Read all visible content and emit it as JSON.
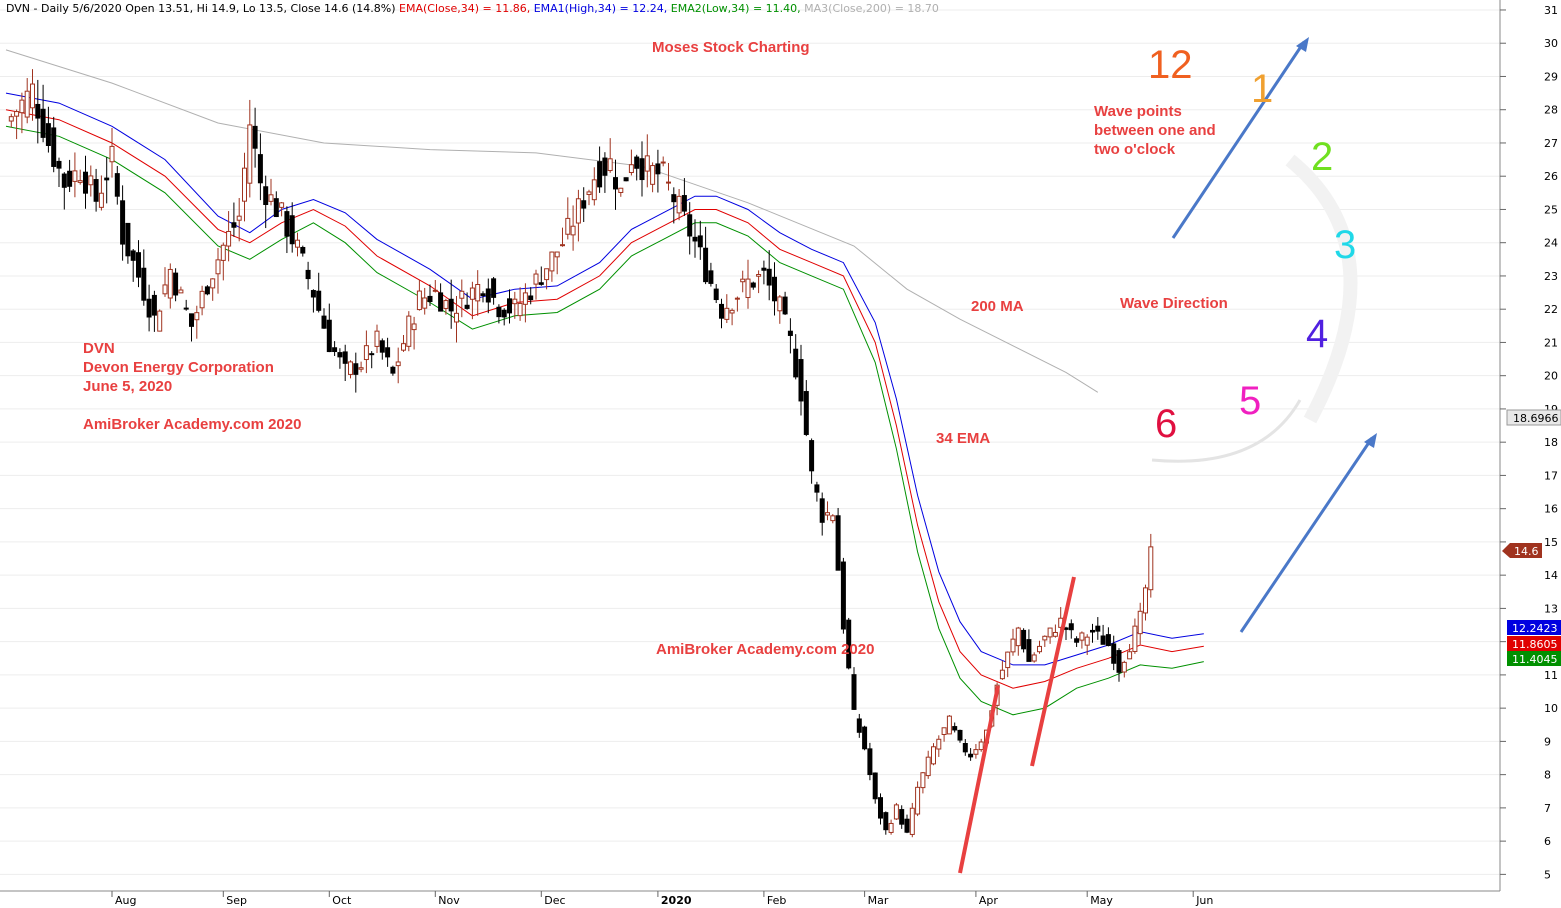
{
  "header": {
    "prefix": "DVN - Daily 5/6/2020 Open 13.51, Hi 14.9, Lo 13.5, Close 14.6 (14.8%) ",
    "ema": "EMA(Close,34) = 11.86, ",
    "ema1": "EMA1(High,34) = 12.24, ",
    "ema2": "EMA2(Low,34) = 11.40, ",
    "ma3": "MA3(Close,200) = 18.70"
  },
  "annotations": {
    "moses": "Moses Stock Charting",
    "ticker": "DVN",
    "company": "Devon Energy Corporation",
    "date": "June 5, 2020",
    "academy_left": "AmiBroker Academy.com  2020",
    "academy_mid": "AmiBroker Academy.com  2020",
    "ma200": "200 MA",
    "ema34": "34 EMA",
    "wave_line1": "Wave points",
    "wave_line2": "between one and",
    "wave_line3": "two o'clock",
    "wave_direction": "Wave Direction"
  },
  "clock": [
    "12",
    "1",
    "2",
    "3",
    "4",
    "5",
    "6"
  ],
  "price_tags": {
    "ma200": "18.6966",
    "close": "14.6",
    "ema_high": "12.2423",
    "ema_close": "11.8605",
    "ema_low": "11.4045"
  },
  "colors": {
    "background": "#ffffff",
    "up_candle": "#a0331f",
    "down_candle": "#000000",
    "ema_close": "#e00000",
    "ema_high": "#0000e0",
    "ema_low": "#009000",
    "ma200": "#b0b0b0",
    "annotation": "#e84040",
    "arrow": "#4a78c8",
    "trend": "#e84040"
  },
  "chart_data": {
    "type": "candlestick",
    "title": "DVN - Daily 5/6/2020",
    "ylim": [
      4.5,
      31.3
    ],
    "y_ticks": [
      5,
      6,
      7,
      8,
      9,
      10,
      11,
      12,
      13,
      14,
      15,
      16,
      17,
      18,
      19,
      20,
      21,
      22,
      23,
      24,
      25,
      26,
      27,
      28,
      29,
      30,
      31
    ],
    "x_ticks": [
      "Aug",
      "Sep",
      "Oct",
      "Nov",
      "Dec",
      "2020",
      "Feb",
      "Mar",
      "Apr",
      "May",
      "Jun"
    ],
    "x_tick_index": [
      20,
      41,
      61,
      81,
      101,
      123,
      143,
      162,
      183,
      204,
      224
    ],
    "series": [
      {
        "name": "EMA(Close,34)",
        "values": [
          [
            0,
            28.0
          ],
          [
            10,
            27.7
          ],
          [
            20,
            27.0
          ],
          [
            30,
            26.0
          ],
          [
            40,
            24.4
          ],
          [
            46,
            24.0
          ],
          [
            52,
            24.6
          ],
          [
            58,
            25.0
          ],
          [
            64,
            24.5
          ],
          [
            70,
            23.6
          ],
          [
            80,
            22.7
          ],
          [
            88,
            21.8
          ],
          [
            96,
            22.2
          ],
          [
            104,
            22.3
          ],
          [
            112,
            23.0
          ],
          [
            118,
            24.0
          ],
          [
            124,
            24.5
          ],
          [
            130,
            25.0
          ],
          [
            134,
            25.0
          ],
          [
            140,
            24.6
          ],
          [
            146,
            23.8
          ],
          [
            152,
            23.4
          ],
          [
            158,
            23.0
          ],
          [
            164,
            21.0
          ],
          [
            168,
            18.5
          ],
          [
            172,
            15.5
          ],
          [
            176,
            13.2
          ],
          [
            180,
            11.7
          ],
          [
            184,
            11.0
          ],
          [
            190,
            10.6
          ],
          [
            196,
            10.8
          ],
          [
            202,
            11.2
          ],
          [
            208,
            11.5
          ],
          [
            214,
            11.9
          ],
          [
            220,
            11.7
          ],
          [
            226,
            11.86
          ]
        ]
      },
      {
        "name": "EMA1(High,34)",
        "values": [
          [
            0,
            28.5
          ],
          [
            10,
            28.2
          ],
          [
            20,
            27.5
          ],
          [
            30,
            26.5
          ],
          [
            40,
            24.8
          ],
          [
            46,
            24.3
          ],
          [
            52,
            25.0
          ],
          [
            58,
            25.3
          ],
          [
            64,
            24.9
          ],
          [
            70,
            24.1
          ],
          [
            80,
            23.2
          ],
          [
            88,
            22.3
          ],
          [
            96,
            22.6
          ],
          [
            104,
            22.7
          ],
          [
            112,
            23.4
          ],
          [
            118,
            24.4
          ],
          [
            124,
            24.9
          ],
          [
            130,
            25.4
          ],
          [
            134,
            25.4
          ],
          [
            140,
            25.0
          ],
          [
            146,
            24.3
          ],
          [
            152,
            23.8
          ],
          [
            158,
            23.4
          ],
          [
            164,
            21.6
          ],
          [
            168,
            19.3
          ],
          [
            172,
            16.4
          ],
          [
            176,
            14.1
          ],
          [
            180,
            12.6
          ],
          [
            184,
            11.7
          ],
          [
            190,
            11.3
          ],
          [
            196,
            11.3
          ],
          [
            202,
            11.6
          ],
          [
            208,
            11.9
          ],
          [
            214,
            12.3
          ],
          [
            220,
            12.1
          ],
          [
            226,
            12.24
          ]
        ]
      },
      {
        "name": "EMA2(Low,34)",
        "values": [
          [
            0,
            27.5
          ],
          [
            10,
            27.2
          ],
          [
            20,
            26.5
          ],
          [
            30,
            25.5
          ],
          [
            40,
            23.9
          ],
          [
            46,
            23.5
          ],
          [
            52,
            24.1
          ],
          [
            58,
            24.6
          ],
          [
            64,
            24.0
          ],
          [
            70,
            23.1
          ],
          [
            80,
            22.2
          ],
          [
            88,
            21.4
          ],
          [
            96,
            21.8
          ],
          [
            104,
            21.9
          ],
          [
            112,
            22.6
          ],
          [
            118,
            23.6
          ],
          [
            124,
            24.1
          ],
          [
            130,
            24.6
          ],
          [
            134,
            24.6
          ],
          [
            140,
            24.2
          ],
          [
            146,
            23.4
          ],
          [
            152,
            23.0
          ],
          [
            158,
            22.6
          ],
          [
            164,
            20.4
          ],
          [
            168,
            17.8
          ],
          [
            172,
            14.7
          ],
          [
            176,
            12.4
          ],
          [
            180,
            10.9
          ],
          [
            184,
            10.2
          ],
          [
            190,
            9.8
          ],
          [
            196,
            10.0
          ],
          [
            202,
            10.6
          ],
          [
            208,
            10.9
          ],
          [
            214,
            11.3
          ],
          [
            220,
            11.2
          ],
          [
            226,
            11.4
          ]
        ]
      },
      {
        "name": "MA3(Close,200)",
        "values": [
          [
            0,
            29.8
          ],
          [
            20,
            28.8
          ],
          [
            40,
            27.6
          ],
          [
            60,
            27.0
          ],
          [
            80,
            26.8
          ],
          [
            100,
            26.7
          ],
          [
            120,
            26.3
          ],
          [
            140,
            25.2
          ],
          [
            160,
            23.9
          ],
          [
            170,
            22.6
          ],
          [
            180,
            21.7
          ],
          [
            190,
            20.9
          ],
          [
            200,
            20.1
          ],
          [
            206,
            19.5
          ]
        ]
      }
    ],
    "ohlc_anchors": [
      [
        0,
        27.6
      ],
      [
        5,
        28.6
      ],
      [
        8,
        27.0
      ],
      [
        11,
        25.8
      ],
      [
        14,
        26.2
      ],
      [
        17,
        25.3
      ],
      [
        20,
        26.5
      ],
      [
        22,
        24.2
      ],
      [
        25,
        23.0
      ],
      [
        28,
        21.7
      ],
      [
        31,
        23.2
      ],
      [
        35,
        21.5
      ],
      [
        38,
        22.8
      ],
      [
        41,
        23.9
      ],
      [
        44,
        24.8
      ],
      [
        46,
        27.6
      ],
      [
        48,
        25.8
      ],
      [
        52,
        24.8
      ],
      [
        55,
        23.8
      ],
      [
        58,
        22.5
      ],
      [
        61,
        21.0
      ],
      [
        64,
        20.1
      ],
      [
        67,
        20.4
      ],
      [
        70,
        21.0
      ],
      [
        73,
        20.0
      ],
      [
        76,
        21.5
      ],
      [
        78,
        22.3
      ],
      [
        81,
        22.5
      ],
      [
        84,
        22.0
      ],
      [
        87,
        22.4
      ],
      [
        90,
        22.8
      ],
      [
        93,
        22.1
      ],
      [
        96,
        22.0
      ],
      [
        99,
        22.6
      ],
      [
        102,
        23.3
      ],
      [
        105,
        24.0
      ],
      [
        108,
        25.0
      ],
      [
        111,
        26.0
      ],
      [
        114,
        26.4
      ],
      [
        116,
        25.5
      ],
      [
        118,
        26.6
      ],
      [
        121,
        26.2
      ],
      [
        124,
        26.0
      ],
      [
        127,
        25.0
      ],
      [
        130,
        24.0
      ],
      [
        133,
        22.8
      ],
      [
        135,
        22.0
      ],
      [
        137,
        22.3
      ],
      [
        140,
        22.8
      ],
      [
        143,
        23.0
      ],
      [
        146,
        22.0
      ],
      [
        148,
        21.0
      ],
      [
        150,
        19.5
      ],
      [
        152,
        17.0
      ],
      [
        154,
        15.8
      ],
      [
        156,
        15.9
      ],
      [
        158,
        12.5
      ],
      [
        160,
        9.8
      ],
      [
        162,
        8.8
      ],
      [
        164,
        7.2
      ],
      [
        166,
        6.3
      ],
      [
        168,
        7.0
      ],
      [
        170,
        6.2
      ],
      [
        172,
        7.6
      ],
      [
        175,
        8.8
      ],
      [
        178,
        9.6
      ],
      [
        180,
        8.9
      ],
      [
        182,
        8.6
      ],
      [
        185,
        9.3
      ],
      [
        187,
        10.7
      ],
      [
        189,
        11.6
      ],
      [
        191,
        12.4
      ],
      [
        193,
        11.4
      ],
      [
        196,
        12.1
      ],
      [
        199,
        12.6
      ],
      [
        202,
        12.0
      ],
      [
        205,
        12.3
      ],
      [
        208,
        11.9
      ],
      [
        210,
        11.2
      ],
      [
        212,
        11.9
      ],
      [
        214,
        12.7
      ],
      [
        215,
        13.6
      ],
      [
        216,
        14.6
      ]
    ]
  }
}
